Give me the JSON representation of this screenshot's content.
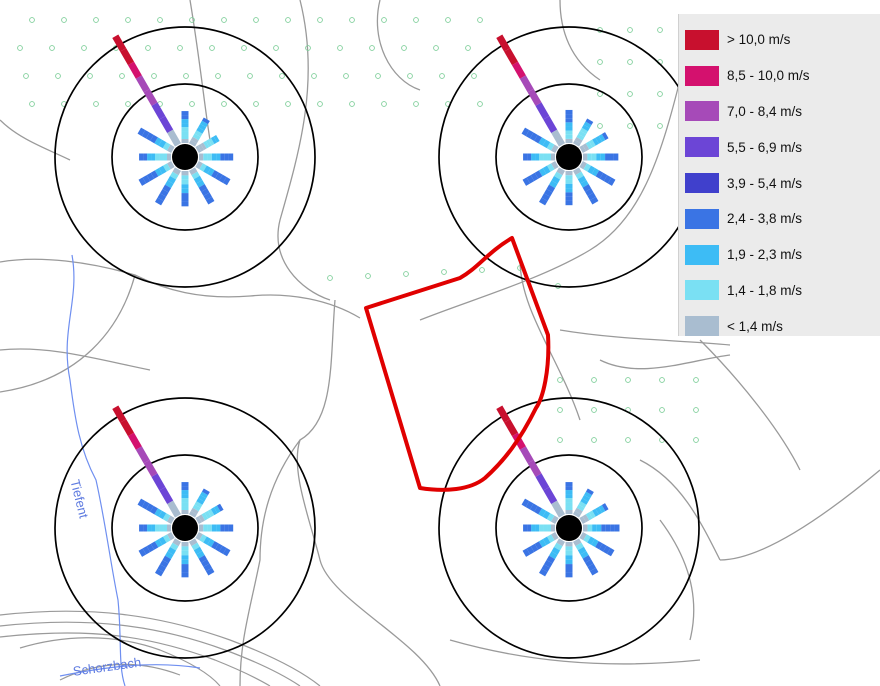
{
  "legend": {
    "items": [
      {
        "label": "> 10,0 m/s",
        "color": "#c8102e"
      },
      {
        "label": "8,5 - 10,0 m/s",
        "color": "#d4116e"
      },
      {
        "label": "7,0 - 8,4 m/s",
        "color": "#a64ab8"
      },
      {
        "label": "5,5 - 6,9 m/s",
        "color": "#6c45d6"
      },
      {
        "label": "3,9 - 5,4 m/s",
        "color": "#4040cc"
      },
      {
        "label": "2,4 - 3,8 m/s",
        "color": "#3a74e4"
      },
      {
        "label": "1,9 - 2,3 m/s",
        "color": "#3dbcf5"
      },
      {
        "label": "1,4 - 1,8 m/s",
        "color": "#7ae0f3"
      },
      {
        "label": "< 1,4 m/s",
        "color": "#a9bdd0"
      }
    ]
  },
  "map_labels": {
    "river_1": "Tiefent",
    "river_2": "Schorzbach"
  },
  "colors": {
    "site_outline": "#e00000",
    "range_circles": "#000000",
    "roads": "#9a9a9a",
    "river": "#6f8ff0",
    "forest_symbols": "#7fcf9a"
  },
  "wind_roses": {
    "count": 4,
    "sector_values_m_s": [
      [
        2.8,
        2.6,
        2.1,
        3.0,
        3.2,
        3.4,
        3.1,
        3.5,
        3.3,
        2.8,
        3.4,
        11.0
      ],
      [
        2.9,
        2.5,
        2.6,
        3.1,
        3.3,
        3.4,
        3.0,
        3.5,
        3.3,
        2.8,
        3.4,
        11.0
      ],
      [
        2.8,
        2.6,
        2.5,
        3.0,
        3.2,
        3.4,
        3.1,
        3.5,
        3.3,
        2.8,
        3.4,
        11.0
      ],
      [
        2.8,
        2.6,
        2.6,
        3.2,
        3.2,
        3.4,
        3.1,
        3.5,
        3.3,
        2.8,
        3.4,
        11.0
      ]
    ]
  }
}
